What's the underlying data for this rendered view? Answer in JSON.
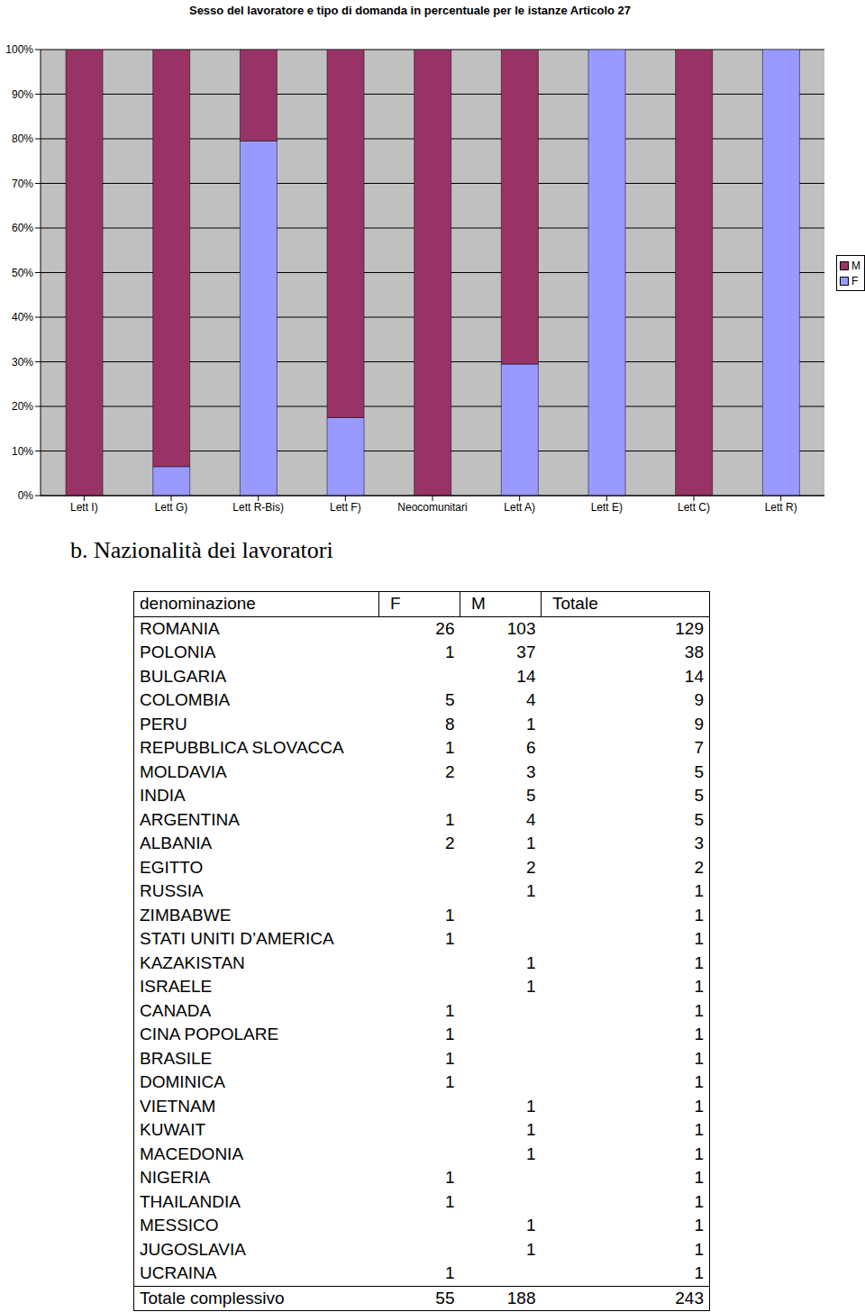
{
  "chart_data": {
    "type": "bar",
    "title": "Sesso del lavoratore e tipo di domanda in percentuale per le istanze Articolo 27",
    "categories": [
      "Lett I)",
      "Lett G)",
      "Lett R-Bis)",
      "Lett F)",
      "Neocomunitari",
      "Lett A)",
      "Lett E)",
      "Lett C)",
      "Lett R)"
    ],
    "series": [
      {
        "name": "M",
        "color": "#993366",
        "values": [
          100,
          93.5,
          20.5,
          82.5,
          100,
          70.5,
          0,
          100,
          0
        ]
      },
      {
        "name": "F",
        "color": "#9999FF",
        "values": [
          0,
          6.5,
          79.5,
          17.5,
          0,
          29.5,
          100,
          0,
          100
        ]
      }
    ],
    "ylim": [
      0,
      100
    ],
    "yticks": [
      {
        "value": 0,
        "label": "0%"
      },
      {
        "value": 10,
        "label": "10%"
      },
      {
        "value": 20,
        "label": "20%"
      },
      {
        "value": 30,
        "label": "30%"
      },
      {
        "value": 40,
        "label": "40%"
      },
      {
        "value": 50,
        "label": "50%"
      },
      {
        "value": 60,
        "label": "60%"
      },
      {
        "value": 70,
        "label": "70%"
      },
      {
        "value": 80,
        "label": "80%"
      },
      {
        "value": 90,
        "label": "90%"
      },
      {
        "value": 100,
        "label": "100%"
      }
    ],
    "grid": true,
    "stacked": true,
    "legend": "right"
  },
  "heading": "b. Nazionalità dei lavoratori",
  "table": {
    "columns": [
      "denominazione",
      "F",
      "M",
      "Totale"
    ],
    "rows": [
      [
        "ROMANIA",
        26,
        103,
        129
      ],
      [
        "POLONIA",
        1,
        37,
        38
      ],
      [
        "BULGARIA",
        null,
        14,
        14
      ],
      [
        "COLOMBIA",
        5,
        4,
        9
      ],
      [
        "PERU",
        8,
        1,
        9
      ],
      [
        "REPUBBLICA SLOVACCA",
        1,
        6,
        7
      ],
      [
        "MOLDAVIA",
        2,
        3,
        5
      ],
      [
        "INDIA",
        null,
        5,
        5
      ],
      [
        "ARGENTINA",
        1,
        4,
        5
      ],
      [
        "ALBANIA",
        2,
        1,
        3
      ],
      [
        "EGITTO",
        null,
        2,
        2
      ],
      [
        "RUSSIA",
        null,
        1,
        1
      ],
      [
        "ZIMBABWE",
        1,
        null,
        1
      ],
      [
        "STATI UNITI D’AMERICA",
        1,
        null,
        1
      ],
      [
        "KAZAKISTAN",
        null,
        1,
        1
      ],
      [
        "ISRAELE",
        null,
        1,
        1
      ],
      [
        "CANADA",
        1,
        null,
        1
      ],
      [
        "CINA POPOLARE",
        1,
        null,
        1
      ],
      [
        "BRASILE",
        1,
        null,
        1
      ],
      [
        "DOMINICA",
        1,
        null,
        1
      ],
      [
        "VIETNAM",
        null,
        1,
        1
      ],
      [
        "KUWAIT",
        null,
        1,
        1
      ],
      [
        "MACEDONIA",
        null,
        1,
        1
      ],
      [
        "NIGERIA",
        1,
        null,
        1
      ],
      [
        "THAILANDIA",
        1,
        null,
        1
      ],
      [
        "MESSICO",
        null,
        1,
        1
      ],
      [
        "JUGOSLAVIA",
        null,
        1,
        1
      ],
      [
        "UCRAINA",
        1,
        null,
        1
      ]
    ],
    "total": [
      "Totale complessivo",
      55,
      188,
      243
    ]
  }
}
